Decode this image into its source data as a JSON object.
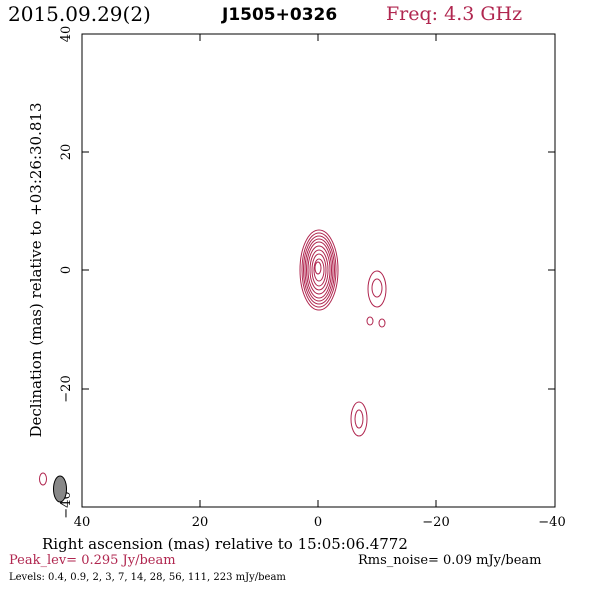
{
  "header": {
    "date": "2015.09.29(2)",
    "source": "J1505+0326",
    "freq": "Freq: 4.3 GHz"
  },
  "axes": {
    "xlabel": "Right ascension (mas) relative to 15:05:06.4772",
    "ylabel": "Declination (mas) relative to +03:26:30.813",
    "xticks": [
      "40",
      "20",
      "0",
      "−20",
      "−40"
    ],
    "yticks": [
      "40",
      "20",
      "0",
      "−20",
      "−40"
    ],
    "xlim": [
      40,
      -40
    ],
    "ylim": [
      -40,
      40
    ]
  },
  "footer": {
    "peak": "Peak_lev=  0.295 Jy/beam",
    "rms": "Rms_noise= 0.09 mJy/beam",
    "levels": "Levels: 0.4,  0.9,    2,    3,    7,   14,   28,   56,  111,  223 mJy/beam"
  },
  "colors": {
    "contour": "#b0264f",
    "peak_text": "#b0264f",
    "freq_text": "#b0264f",
    "beam_fill": "#888888"
  },
  "chart_data": {
    "type": "contour",
    "core": {
      "ra": 0,
      "dec": 0.5,
      "ellipses": 10
    },
    "components": [
      {
        "name": "",
        "ra": -10,
        "dec": -3
      },
      {
        "name": "",
        "ra": -8.8,
        "dec": -8.5
      },
      {
        "name": "",
        "ra": -10.8,
        "dec": -8.8
      },
      {
        "name": "",
        "ra": -7,
        "dec": -25
      },
      {
        "name": "",
        "ra": 37.6,
        "dec": -35.5
      }
    ],
    "beam": {
      "ra": 34.2,
      "dec": -37
    }
  }
}
